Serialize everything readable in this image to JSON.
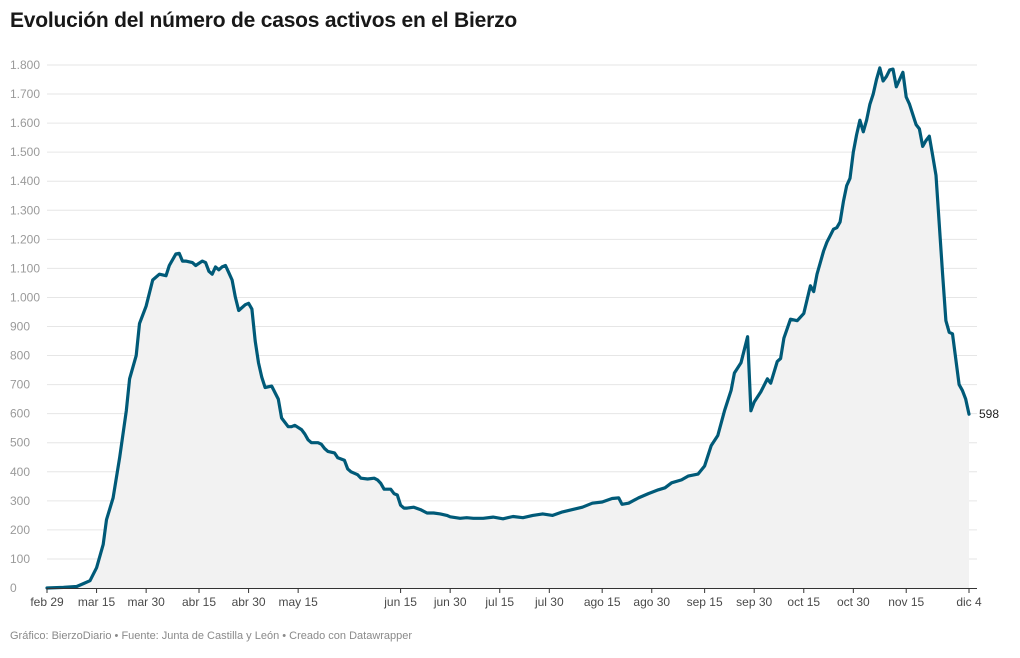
{
  "title": "Evolución del número de casos activos en el Bierzo",
  "footer": "Gráfico: BierzoDiario • Fuente: Junta de Castilla y León • Creado con Datawrapper",
  "colors": {
    "line": "#005a78",
    "area": "#f2f2f2",
    "grid": "#e6e6e6",
    "axis": "#333333"
  },
  "chart_data": {
    "type": "area",
    "ylim": [
      0,
      1800
    ],
    "yticks": [
      0,
      100,
      200,
      300,
      400,
      500,
      600,
      700,
      800,
      900,
      1000,
      1100,
      1200,
      1300,
      1400,
      1500,
      1600,
      1700,
      1800
    ],
    "ytick_labels": [
      "0",
      "100",
      "200",
      "300",
      "400",
      "500",
      "600",
      "700",
      "800",
      "900",
      "1.000",
      "1.100",
      "1.200",
      "1.300",
      "1.400",
      "1.500",
      "1.600",
      "1.700",
      "1.800"
    ],
    "xlim": [
      "2020-02-29",
      "2020-12-04"
    ],
    "xticks": [
      {
        "date": "2020-02-29",
        "label": "feb 29"
      },
      {
        "date": "2020-03-15",
        "label": "mar 15"
      },
      {
        "date": "2020-03-30",
        "label": "mar 30"
      },
      {
        "date": "2020-04-15",
        "label": "abr 15"
      },
      {
        "date": "2020-04-30",
        "label": "abr 30"
      },
      {
        "date": "2020-05-15",
        "label": "may 15"
      },
      {
        "date": "2020-06-15",
        "label": "jun 15"
      },
      {
        "date": "2020-06-30",
        "label": "jun 30"
      },
      {
        "date": "2020-07-15",
        "label": "jul 15"
      },
      {
        "date": "2020-07-30",
        "label": "jul 30"
      },
      {
        "date": "2020-08-15",
        "label": "ago 15"
      },
      {
        "date": "2020-08-30",
        "label": "ago 30"
      },
      {
        "date": "2020-09-15",
        "label": "sep 15"
      },
      {
        "date": "2020-09-30",
        "label": "sep 30"
      },
      {
        "date": "2020-10-15",
        "label": "oct 15"
      },
      {
        "date": "2020-10-30",
        "label": "oct 30"
      },
      {
        "date": "2020-11-15",
        "label": "nov 15"
      },
      {
        "date": "2020-12-04",
        "label": "dic 4"
      }
    ],
    "end_label": "598",
    "series": [
      {
        "points": [
          [
            "2020-02-29",
            0
          ],
          [
            "2020-03-05",
            2
          ],
          [
            "2020-03-09",
            5
          ],
          [
            "2020-03-11",
            15
          ],
          [
            "2020-03-13",
            25
          ],
          [
            "2020-03-15",
            70
          ],
          [
            "2020-03-17",
            150
          ],
          [
            "2020-03-18",
            235
          ],
          [
            "2020-03-20",
            310
          ],
          [
            "2020-03-22",
            450
          ],
          [
            "2020-03-24",
            610
          ],
          [
            "2020-03-25",
            720
          ],
          [
            "2020-03-27",
            800
          ],
          [
            "2020-03-28",
            910
          ],
          [
            "2020-03-30",
            970
          ],
          [
            "2020-04-01",
            1060
          ],
          [
            "2020-04-03",
            1080
          ],
          [
            "2020-04-05",
            1075
          ],
          [
            "2020-04-06",
            1110
          ],
          [
            "2020-04-08",
            1150
          ],
          [
            "2020-04-09",
            1152
          ],
          [
            "2020-04-10",
            1125
          ],
          [
            "2020-04-11",
            1125
          ],
          [
            "2020-04-13",
            1120
          ],
          [
            "2020-04-14",
            1110
          ],
          [
            "2020-04-16",
            1125
          ],
          [
            "2020-04-17",
            1120
          ],
          [
            "2020-04-18",
            1090
          ],
          [
            "2020-04-19",
            1080
          ],
          [
            "2020-04-20",
            1105
          ],
          [
            "2020-04-21",
            1095
          ],
          [
            "2020-04-22",
            1105
          ],
          [
            "2020-04-23",
            1110
          ],
          [
            "2020-04-24",
            1085
          ],
          [
            "2020-04-25",
            1060
          ],
          [
            "2020-04-26",
            1000
          ],
          [
            "2020-04-27",
            955
          ],
          [
            "2020-04-29",
            975
          ],
          [
            "2020-04-30",
            980
          ],
          [
            "2020-05-01",
            960
          ],
          [
            "2020-05-02",
            850
          ],
          [
            "2020-05-03",
            775
          ],
          [
            "2020-05-04",
            725
          ],
          [
            "2020-05-05",
            690
          ],
          [
            "2020-05-07",
            695
          ],
          [
            "2020-05-09",
            650
          ],
          [
            "2020-05-10",
            585
          ],
          [
            "2020-05-12",
            555
          ],
          [
            "2020-05-13",
            555
          ],
          [
            "2020-05-14",
            560
          ],
          [
            "2020-05-16",
            545
          ],
          [
            "2020-05-17",
            530
          ],
          [
            "2020-05-18",
            510
          ],
          [
            "2020-05-19",
            500
          ],
          [
            "2020-05-21",
            500
          ],
          [
            "2020-05-22",
            495
          ],
          [
            "2020-05-23",
            480
          ],
          [
            "2020-05-24",
            470
          ],
          [
            "2020-05-26",
            465
          ],
          [
            "2020-05-27",
            448
          ],
          [
            "2020-05-29",
            440
          ],
          [
            "2020-05-30",
            410
          ],
          [
            "2020-05-31",
            400
          ],
          [
            "2020-06-02",
            390
          ],
          [
            "2020-06-03",
            378
          ],
          [
            "2020-06-05",
            375
          ],
          [
            "2020-06-07",
            378
          ],
          [
            "2020-06-08",
            372
          ],
          [
            "2020-06-09",
            360
          ],
          [
            "2020-06-10",
            340
          ],
          [
            "2020-06-12",
            340
          ],
          [
            "2020-06-13",
            325
          ],
          [
            "2020-06-14",
            320
          ],
          [
            "2020-06-15",
            285
          ],
          [
            "2020-06-16",
            275
          ],
          [
            "2020-06-17",
            275
          ],
          [
            "2020-06-19",
            278
          ],
          [
            "2020-06-21",
            270
          ],
          [
            "2020-06-23",
            258
          ],
          [
            "2020-06-25",
            258
          ],
          [
            "2020-06-27",
            255
          ],
          [
            "2020-06-29",
            250
          ],
          [
            "2020-06-30",
            245
          ],
          [
            "2020-07-03",
            240
          ],
          [
            "2020-07-05",
            242
          ],
          [
            "2020-07-07",
            240
          ],
          [
            "2020-07-10",
            240
          ],
          [
            "2020-07-13",
            244
          ],
          [
            "2020-07-16",
            238
          ],
          [
            "2020-07-19",
            246
          ],
          [
            "2020-07-22",
            242
          ],
          [
            "2020-07-25",
            250
          ],
          [
            "2020-07-28",
            255
          ],
          [
            "2020-07-31",
            250
          ],
          [
            "2020-08-03",
            262
          ],
          [
            "2020-08-06",
            270
          ],
          [
            "2020-08-09",
            278
          ],
          [
            "2020-08-12",
            292
          ],
          [
            "2020-08-15",
            296
          ],
          [
            "2020-08-18",
            308
          ],
          [
            "2020-08-20",
            310
          ],
          [
            "2020-08-21",
            288
          ],
          [
            "2020-08-23",
            292
          ],
          [
            "2020-08-26",
            310
          ],
          [
            "2020-08-29",
            325
          ],
          [
            "2020-09-01",
            338
          ],
          [
            "2020-09-03",
            345
          ],
          [
            "2020-09-05",
            362
          ],
          [
            "2020-09-08",
            372
          ],
          [
            "2020-09-10",
            385
          ],
          [
            "2020-09-13",
            392
          ],
          [
            "2020-09-15",
            420
          ],
          [
            "2020-09-17",
            490
          ],
          [
            "2020-09-19",
            525
          ],
          [
            "2020-09-21",
            610
          ],
          [
            "2020-09-23",
            680
          ],
          [
            "2020-09-24",
            740
          ],
          [
            "2020-09-26",
            775
          ],
          [
            "2020-09-27",
            820
          ],
          [
            "2020-09-28",
            865
          ],
          [
            "2020-09-29",
            610
          ],
          [
            "2020-09-30",
            640
          ],
          [
            "2020-10-02",
            675
          ],
          [
            "2020-10-04",
            720
          ],
          [
            "2020-10-05",
            705
          ],
          [
            "2020-10-07",
            780
          ],
          [
            "2020-10-08",
            790
          ],
          [
            "2020-10-09",
            860
          ],
          [
            "2020-10-11",
            925
          ],
          [
            "2020-10-13",
            920
          ],
          [
            "2020-10-15",
            945
          ],
          [
            "2020-10-17",
            1040
          ],
          [
            "2020-10-18",
            1020
          ],
          [
            "2020-10-19",
            1080
          ],
          [
            "2020-10-21",
            1160
          ],
          [
            "2020-10-22",
            1190
          ],
          [
            "2020-10-24",
            1235
          ],
          [
            "2020-10-25",
            1240
          ],
          [
            "2020-10-26",
            1260
          ],
          [
            "2020-10-27",
            1330
          ],
          [
            "2020-10-28",
            1385
          ],
          [
            "2020-10-29",
            1410
          ],
          [
            "2020-10-30",
            1500
          ],
          [
            "2020-10-31",
            1560
          ],
          [
            "2020-11-01",
            1610
          ],
          [
            "2020-11-02",
            1570
          ],
          [
            "2020-11-03",
            1610
          ],
          [
            "2020-11-04",
            1665
          ],
          [
            "2020-11-05",
            1700
          ],
          [
            "2020-11-06",
            1750
          ],
          [
            "2020-11-07",
            1790
          ],
          [
            "2020-11-08",
            1745
          ],
          [
            "2020-11-09",
            1760
          ],
          [
            "2020-11-10",
            1783
          ],
          [
            "2020-11-11",
            1786
          ],
          [
            "2020-11-12",
            1725
          ],
          [
            "2020-11-13",
            1750
          ],
          [
            "2020-11-14",
            1775
          ],
          [
            "2020-11-15",
            1690
          ],
          [
            "2020-11-16",
            1665
          ],
          [
            "2020-11-18",
            1595
          ],
          [
            "2020-11-19",
            1580
          ],
          [
            "2020-11-20",
            1520
          ],
          [
            "2020-11-21",
            1540
          ],
          [
            "2020-11-22",
            1555
          ],
          [
            "2020-11-23",
            1490
          ],
          [
            "2020-11-24",
            1420
          ],
          [
            "2020-11-25",
            1250
          ],
          [
            "2020-11-26",
            1080
          ],
          [
            "2020-11-27",
            920
          ],
          [
            "2020-11-28",
            880
          ],
          [
            "2020-11-29",
            875
          ],
          [
            "2020-12-01",
            700
          ],
          [
            "2020-12-02",
            680
          ],
          [
            "2020-12-03",
            650
          ],
          [
            "2020-12-04",
            598
          ]
        ]
      }
    ]
  }
}
